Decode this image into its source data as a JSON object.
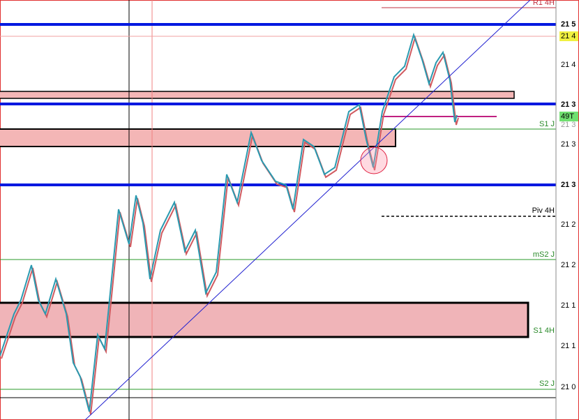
{
  "price_axis": {
    "labels": [
      "21 5",
      "21 4",
      "21 4",
      "21 3",
      "21 3",
      "21 3",
      "21 3",
      "21 2",
      "21 2",
      "21 1",
      "21 1",
      "21 0"
    ]
  },
  "marker": "49T",
  "levels": {
    "r1_4h": "R1 4H",
    "s1_j": "S1 J",
    "piv_4h": "Piv 4H",
    "ms2_j": "mS2 J",
    "s1_4h": "S1 4H",
    "s2_j": "S2 J"
  }
}
